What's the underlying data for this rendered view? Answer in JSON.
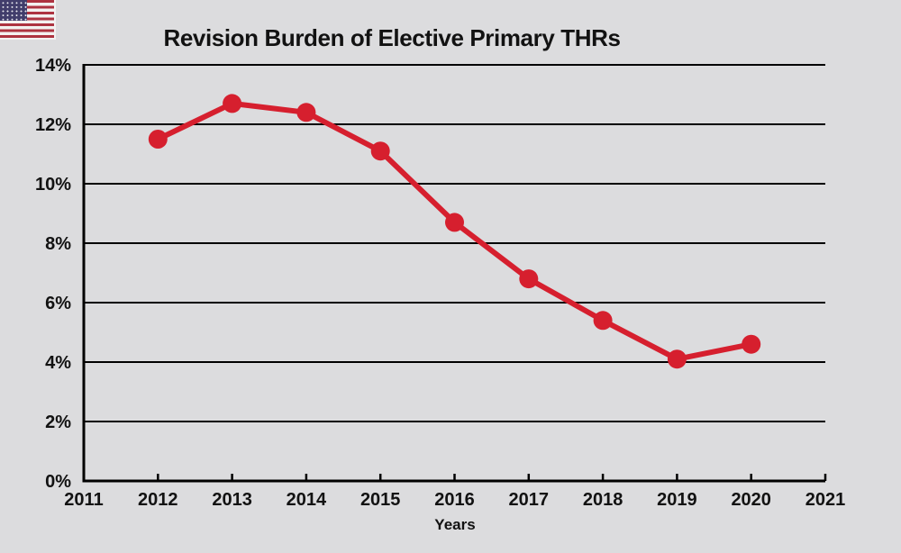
{
  "page": {
    "background_color": "#dcdcde"
  },
  "flag": {
    "icon": "us-flag-icon",
    "country": "United States"
  },
  "chart_data": {
    "type": "line",
    "title": "Revision Burden of Elective Primary THRs",
    "xlabel": "Years",
    "ylabel": "",
    "x": [
      2012,
      2013,
      2014,
      2015,
      2016,
      2017,
      2018,
      2019,
      2020
    ],
    "values": [
      11.5,
      12.7,
      12.4,
      11.1,
      8.7,
      6.8,
      5.4,
      4.1,
      4.6
    ],
    "x_ticks": [
      "2011",
      "2012",
      "2013",
      "2014",
      "2015",
      "2016",
      "2017",
      "2018",
      "2019",
      "2020",
      "2021"
    ],
    "y_ticks": [
      "0%",
      "2%",
      "4%",
      "6%",
      "8%",
      "10%",
      "12%",
      "14%"
    ],
    "xlim": [
      2011,
      2021
    ],
    "ylim": [
      0,
      14
    ],
    "grid": "horizontal-only",
    "legend": "none",
    "series_color": "#d61f2e",
    "axis_color": "#000000",
    "marker": "circle"
  }
}
